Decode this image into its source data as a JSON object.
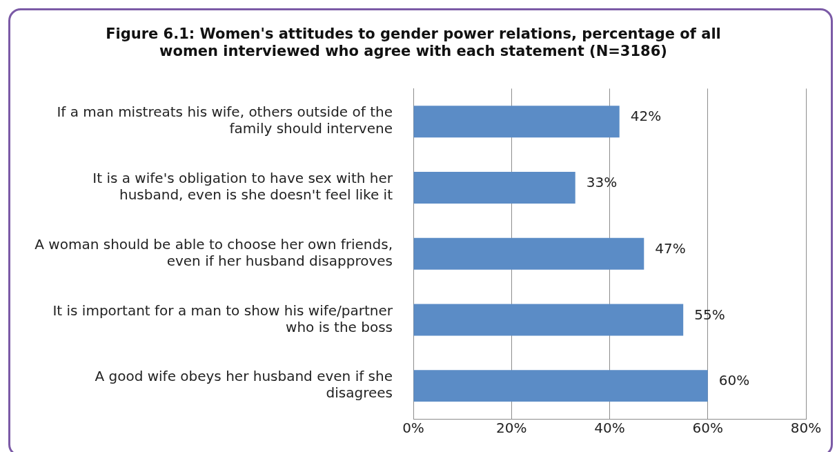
{
  "chart_data": {
    "type": "bar",
    "orientation": "horizontal",
    "title": "Figure 6.1: Women's attitudes to gender power relations, percentage of all women interviewed who agree with each statement (N=3186)",
    "categories": [
      "If a man mistreats his wife, others outside of the family should intervene",
      "It is a wife's obligation to have sex with her husband, even is she doesn't feel like it",
      "A woman should be able to choose her own friends, even if her husband disapproves",
      "It is important for a man to show his wife/partner who is the boss",
      "A good wife obeys her husband even if she disagrees"
    ],
    "values": [
      42,
      33,
      47,
      55,
      60
    ],
    "value_labels": [
      "42%",
      "33%",
      "47%",
      "55%",
      "60%"
    ],
    "color": "#5b8cc6",
    "xlim": [
      0,
      80
    ],
    "xticks": [
      {
        "value": 0,
        "label": "0%"
      },
      {
        "value": 20,
        "label": "20%"
      },
      {
        "value": 40,
        "label": "40%"
      },
      {
        "value": 60,
        "label": "60%"
      },
      {
        "value": 80,
        "label": "80%"
      }
    ],
    "grid": "x",
    "legend": false
  }
}
